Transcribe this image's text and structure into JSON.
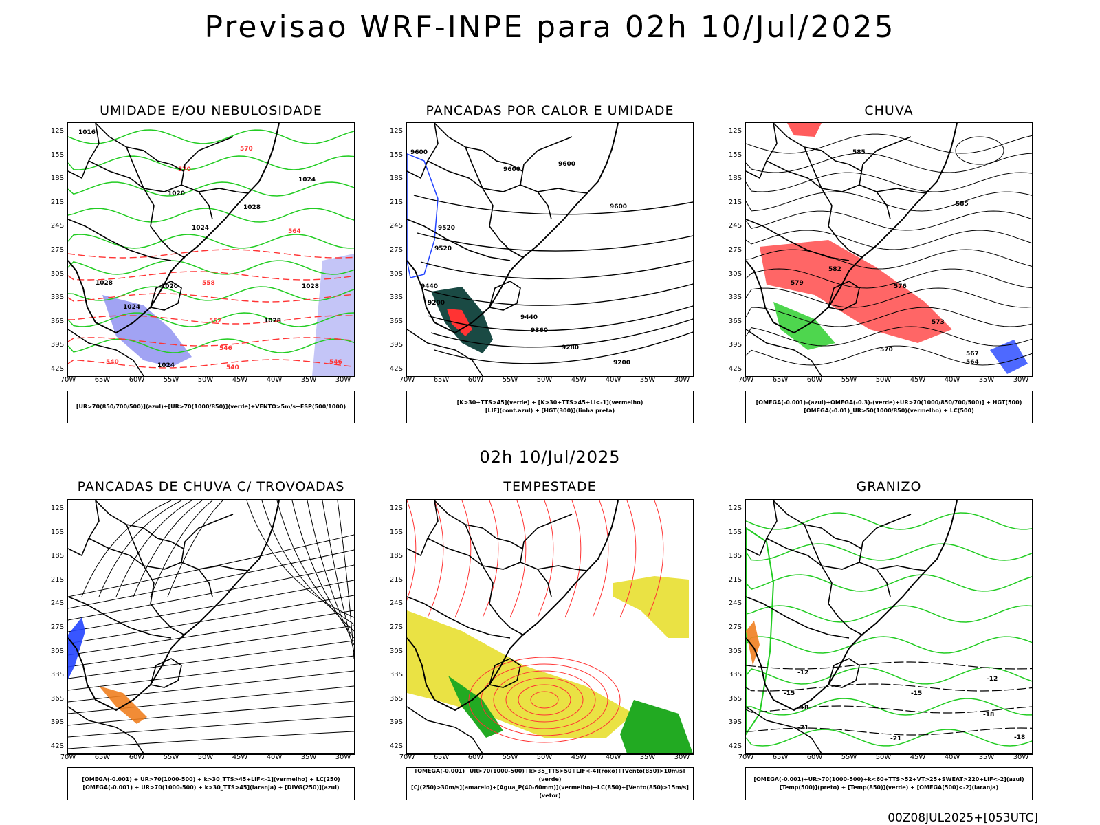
{
  "title": "Previsao WRF-INPE  para 02h 10/Jul/2025",
  "subtitle": "02h 10/Jul/2025",
  "footer": "00Z08JUL2025+[053UTC]",
  "lat_ticks": [
    "12S",
    "15S",
    "18S",
    "21S",
    "24S",
    "27S",
    "30S",
    "33S",
    "36S",
    "39S",
    "42S"
  ],
  "lon_ticks": [
    "70W",
    "65W",
    "60W",
    "55W",
    "50W",
    "45W",
    "40W",
    "35W",
    "30W"
  ],
  "panels": [
    {
      "title": "UMIDADE E/OU NEBULOSIDADE",
      "legend": [
        "[UR>70(850/700/500)](azul)+[UR>70(1000/850)](verde)+VENTO>5m/s+ESP(500/1000)"
      ],
      "contour_labels": [
        "1016",
        "1020",
        "1024",
        "1028",
        "1024",
        "1020",
        "1028",
        "1024",
        "1028",
        "1028",
        "1024",
        "570",
        "570",
        "564",
        "558",
        "552",
        "546",
        "540",
        "540",
        "546"
      ]
    },
    {
      "title": "PANCADAS POR CALOR E UMIDADE",
      "legend": [
        "[K>30+TTS>45](verde) + [K>30+TTS>45+LI<-1](vermelho)",
        "[LIF](cont.azul) + [HGT(300)](linha preta)"
      ],
      "contour_labels": [
        "9600",
        "9600",
        "9600",
        "9600",
        "9520",
        "9520",
        "9440",
        "9440",
        "9360",
        "9280",
        "9200",
        "9200"
      ]
    },
    {
      "title": "CHUVA",
      "legend": [
        "[OMEGA(-0.001)-(azul)+OMEGA(-0.3)-(verde)+UR>70(1000/850/700/500)] + HGT(500)",
        "[OMEGA(-0.01)_UR>50(1000/850)(vermelho) + LC(500)"
      ],
      "contour_labels": [
        "585",
        "585",
        "582",
        "579",
        "576",
        "573",
        "570",
        "567",
        "564"
      ]
    },
    {
      "title": "PANCADAS DE CHUVA C/ TROVOADAS",
      "legend": [
        "[OMEGA(-0.001) + UR>70(1000-500) + k>30_TTS>45+LIF<-1](vermelho) + LC(250)",
        "[OMEGA(-0.001) + UR>70(1000-500) + k>30_TTS>45](laranja) + [DIVG(250)](azul)"
      ],
      "contour_labels": []
    },
    {
      "title": "TEMPESTADE",
      "legend": [
        "[OMEGA(-0.001)+UR>70(1000-500)+k>35_TTS>50+LIF<-4](roxo)+[Vento(850)>10m/s](verde)",
        "[CJ(250)>30m/s](amarelo)+[Agua_P(40-60mm)](vermelho)+LC(850)+[Vento(850)>15m/s](vetor)"
      ],
      "contour_labels": []
    },
    {
      "title": "GRANIZO",
      "legend": [
        "[OMEGA(-0.001)+UR>70(1000-500)+k<60+TTS>52+VT>25+SWEAT>220+LIF<-2](azul)",
        "[Temp(500)](preto) + [Temp(850)](verde) + [OMEGA(500)<-2](laranja)"
      ],
      "contour_labels": [
        "-12",
        "-12",
        "-15",
        "-15",
        "-18",
        "-18",
        "-18",
        "-21",
        "-21"
      ]
    }
  ],
  "colors": {
    "blue_shade": "#8a8cf0",
    "green_contour": "#22cc22",
    "red_contour": "#ff3333",
    "dark_teal": "#1a4a44",
    "yellow": "#e8df30",
    "orange": "#f08020",
    "blue_contour": "#2244ff",
    "black": "#000000"
  }
}
